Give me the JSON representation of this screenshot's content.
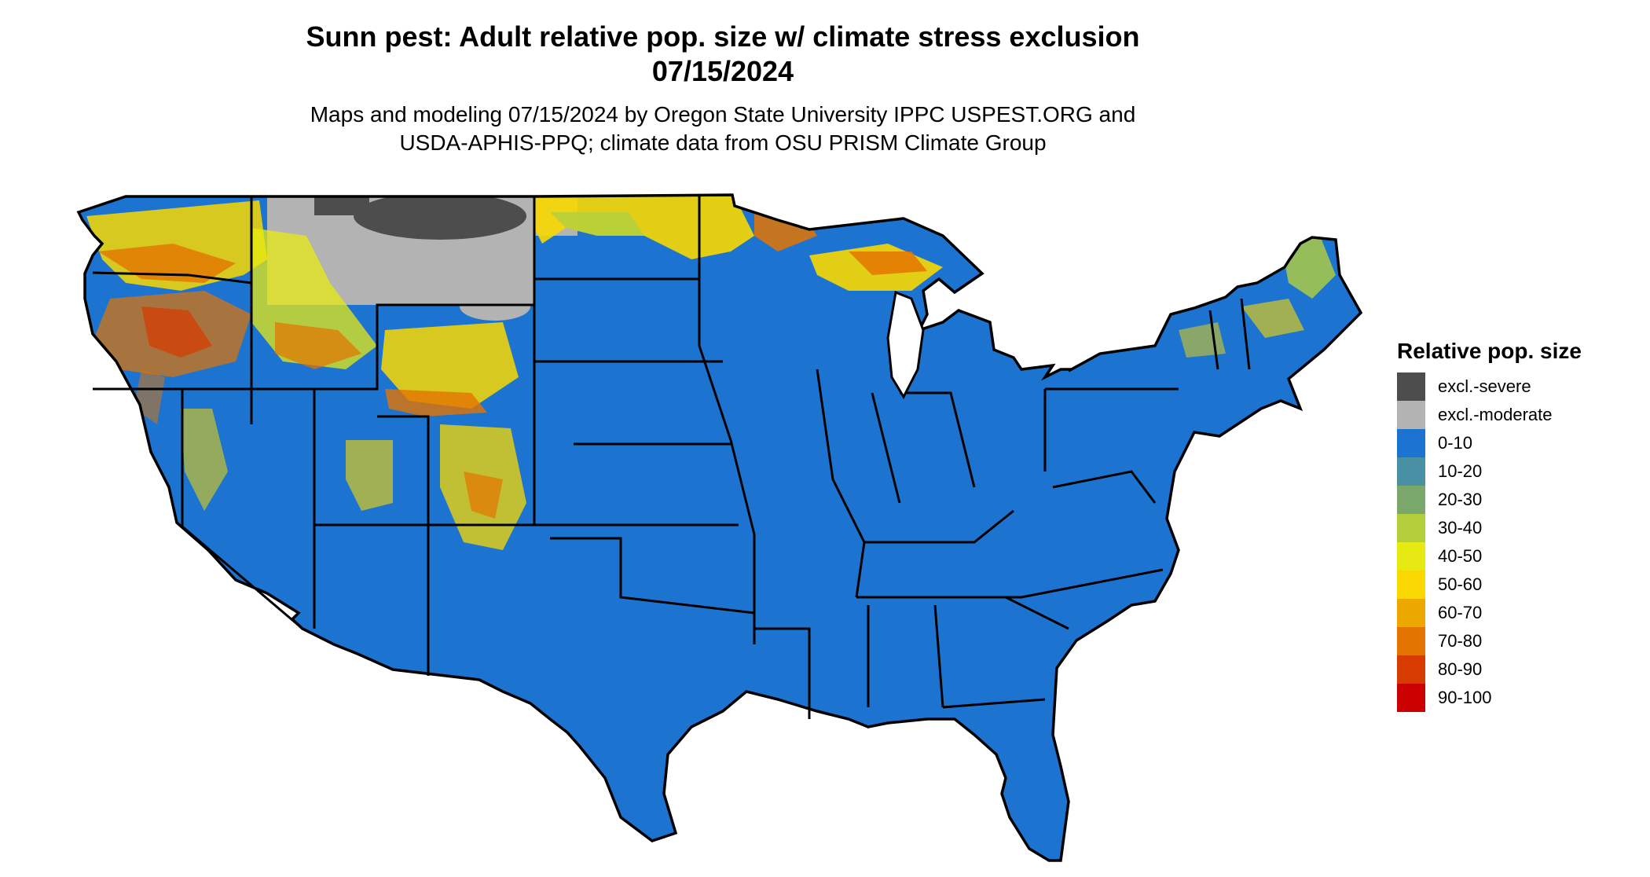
{
  "title_line1": "Sunn pest: Adult relative pop. size w/ climate stress exclusion",
  "title_line2": "07/15/2024",
  "subtitle_line1": "Maps and modeling 07/15/2024 by Oregon State University IPPC USPEST.ORG and",
  "subtitle_line2": "USDA-APHIS-PPQ; climate data from OSU PRISM Climate Group",
  "legend": {
    "title": "Relative pop. size",
    "items": [
      {
        "label": "excl.-severe",
        "color": "#4d4d4d"
      },
      {
        "label": "excl.-moderate",
        "color": "#b3b3b3"
      },
      {
        "label": "0-10",
        "color": "#1c74d0"
      },
      {
        "label": "10-20",
        "color": "#4a90a4"
      },
      {
        "label": "20-30",
        "color": "#7aa86a"
      },
      {
        "label": "30-40",
        "color": "#b4cf3c"
      },
      {
        "label": "40-50",
        "color": "#e6ea12"
      },
      {
        "label": "50-60",
        "color": "#f8d800"
      },
      {
        "label": "60-70",
        "color": "#eda800"
      },
      {
        "label": "70-80",
        "color": "#e37400"
      },
      {
        "label": "80-90",
        "color": "#d83b00"
      },
      {
        "label": "90-100",
        "color": "#cc0000"
      }
    ]
  },
  "colors": {
    "land_base": "#1c74d0",
    "state_border": "#000000"
  }
}
